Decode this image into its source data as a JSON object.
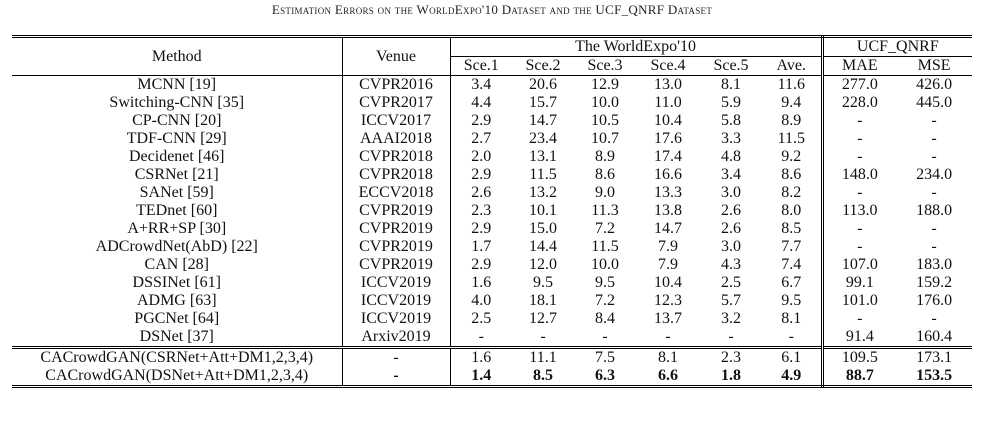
{
  "caption": "Estimation Errors on the WorldExpo'10 Dataset and the UCF_QNRF Dataset",
  "header": {
    "method": "Method",
    "venue": "Venue",
    "group_worldexpo": "The WorldExpo'10",
    "group_ucf": "UCF_QNRF",
    "cols": [
      "Sce.1",
      "Sce.2",
      "Sce.3",
      "Sce.4",
      "Sce.5",
      "Ave.",
      "MAE",
      "MSE"
    ]
  },
  "rows": [
    {
      "method": "MCNN [19]",
      "venue": "CVPR2016",
      "vals": [
        "3.4",
        "20.6",
        "12.9",
        "13.0",
        "8.1",
        "11.6",
        "277.0",
        "426.0"
      ]
    },
    {
      "method": "Switching-CNN [35]",
      "venue": "CVPR2017",
      "vals": [
        "4.4",
        "15.7",
        "10.0",
        "11.0",
        "5.9",
        "9.4",
        "228.0",
        "445.0"
      ]
    },
    {
      "method": "CP-CNN [20]",
      "venue": "ICCV2017",
      "vals": [
        "2.9",
        "14.7",
        "10.5",
        "10.4",
        "5.8",
        "8.9",
        "-",
        "-"
      ]
    },
    {
      "method": "TDF-CNN [29]",
      "venue": "AAAI2018",
      "vals": [
        "2.7",
        "23.4",
        "10.7",
        "17.6",
        "3.3",
        "11.5",
        "-",
        "-"
      ]
    },
    {
      "method": "Decidenet [46]",
      "venue": "CVPR2018",
      "vals": [
        "2.0",
        "13.1",
        "8.9",
        "17.4",
        "4.8",
        "9.2",
        "-",
        "-"
      ]
    },
    {
      "method": "CSRNet [21]",
      "venue": "CVPR2018",
      "vals": [
        "2.9",
        "11.5",
        "8.6",
        "16.6",
        "3.4",
        "8.6",
        "148.0",
        "234.0"
      ]
    },
    {
      "method": "SANet [59]",
      "venue": "ECCV2018",
      "vals": [
        "2.6",
        "13.2",
        "9.0",
        "13.3",
        "3.0",
        "8.2",
        "-",
        "-"
      ]
    },
    {
      "method": "TEDnet [60]",
      "venue": "CVPR2019",
      "vals": [
        "2.3",
        "10.1",
        "11.3",
        "13.8",
        "2.6",
        "8.0",
        "113.0",
        "188.0"
      ]
    },
    {
      "method": "A+RR+SP [30]",
      "venue": "CVPR2019",
      "vals": [
        "2.9",
        "15.0",
        "7.2",
        "14.7",
        "2.6",
        "8.5",
        "-",
        "-"
      ]
    },
    {
      "method": "ADCrowdNet(AbD) [22]",
      "venue": "CVPR2019",
      "vals": [
        "1.7",
        "14.4",
        "11.5",
        "7.9",
        "3.0",
        "7.7",
        "-",
        "-"
      ]
    },
    {
      "method": "CAN [28]",
      "venue": "CVPR2019",
      "vals": [
        "2.9",
        "12.0",
        "10.0",
        "7.9",
        "4.3",
        "7.4",
        "107.0",
        "183.0"
      ]
    },
    {
      "method": "DSSINet [61]",
      "venue": "ICCV2019",
      "vals": [
        "1.6",
        "9.5",
        "9.5",
        "10.4",
        "2.5",
        "6.7",
        "99.1",
        "159.2"
      ]
    },
    {
      "method": "ADMG [63]",
      "venue": "ICCV2019",
      "vals": [
        "4.0",
        "18.1",
        "7.2",
        "12.3",
        "5.7",
        "9.5",
        "101.0",
        "176.0"
      ]
    },
    {
      "method": "PGCNet [64]",
      "venue": "ICCV2019",
      "vals": [
        "2.5",
        "12.7",
        "8.4",
        "13.7",
        "3.2",
        "8.1",
        "-",
        "-"
      ]
    },
    {
      "method": "DSNet [37]",
      "venue": "Arxiv2019",
      "vals": [
        "-",
        "-",
        "-",
        "-",
        "-",
        "-",
        "91.4",
        "160.4"
      ]
    }
  ],
  "ours": [
    {
      "method": "CACrowdGAN(CSRNet+Att+DM1,2,3,4)",
      "venue": "-",
      "vals": [
        "1.6",
        "11.1",
        "7.5",
        "8.1",
        "2.3",
        "6.1",
        "109.5",
        "173.1"
      ],
      "bold": false
    },
    {
      "method": "CACrowdGAN(DSNet+Att+DM1,2,3,4)",
      "venue": "-",
      "vals": [
        "1.4",
        "8.5",
        "6.3",
        "6.6",
        "1.8",
        "4.9",
        "88.7",
        "153.5"
      ],
      "bold": true
    }
  ]
}
